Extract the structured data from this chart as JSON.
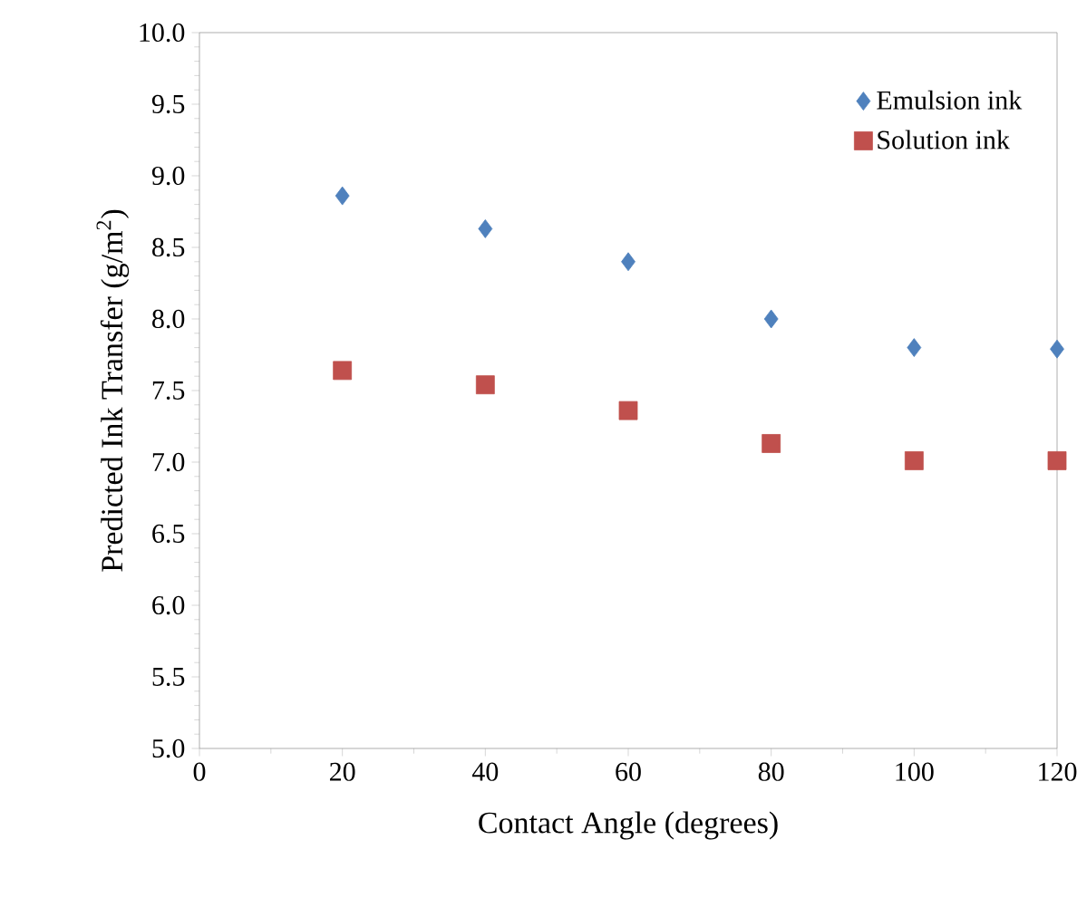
{
  "chart_data": {
    "type": "scatter",
    "xlabel": "Contact Angle (degrees)",
    "ylabel": "Predicted Ink Transfer (g/m$^{2}$)",
    "x": [
      20,
      40,
      60,
      80,
      100,
      120
    ],
    "series": [
      {
        "name": "Emulsion ink",
        "color": "#4f81bd",
        "marker": "diamond",
        "values": [
          8.86,
          8.63,
          8.4,
          8.0,
          7.8,
          7.79
        ]
      },
      {
        "name": "Solution ink",
        "color": "#c0504d",
        "marker": "square",
        "values": [
          7.64,
          7.54,
          7.36,
          7.13,
          7.01,
          7.01
        ]
      }
    ],
    "xlim": [
      0,
      120
    ],
    "xticks": [
      0,
      20,
      40,
      60,
      80,
      100,
      120
    ],
    "ylim": [
      5.0,
      10.0
    ],
    "yticks": [
      {
        "value": 5,
        "label": "5.0"
      },
      {
        "value": 5.5,
        "label": "5.5"
      },
      {
        "value": 6,
        "label": "6.0"
      },
      {
        "value": 6.5,
        "label": "6.5"
      },
      {
        "value": 7,
        "label": "7.0"
      },
      {
        "value": 7.5,
        "label": "7.5"
      },
      {
        "value": 8,
        "label": "8.0"
      },
      {
        "value": 8.5,
        "label": "8.5"
      },
      {
        "value": 9,
        "label": "9.0"
      },
      {
        "value": 9.5,
        "label": "9.5"
      },
      {
        "value": 10,
        "label": "10.0"
      }
    ],
    "grid": false,
    "legend": "top right"
  }
}
